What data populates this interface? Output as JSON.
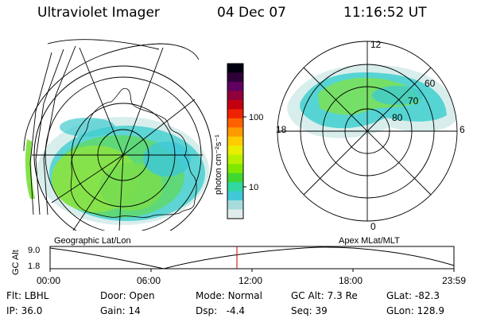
{
  "header": {
    "instrument": "Ultraviolet Imager",
    "date": "04 Dec 07",
    "time": "11:16:52 UT"
  },
  "colorbar": {
    "unit_label": "photon cm⁻²s⁻¹",
    "ticks": [
      "100",
      "10"
    ],
    "colors": [
      "#000010",
      "#300038",
      "#600060",
      "#90003a",
      "#c40010",
      "#ee2200",
      "#ff6000",
      "#ff9a00",
      "#ffcc00",
      "#e8ee00",
      "#b8f000",
      "#80e800",
      "#40d830",
      "#30d8a0",
      "#40c8d8",
      "#a8dcdc",
      "#e0ecec"
    ]
  },
  "geographic_map": {
    "label": "Geographic Lat/Lon"
  },
  "apex_map": {
    "label": "Apex MLat/MLT",
    "mlt_labels": {
      "top": "12",
      "left": "18",
      "right": "6",
      "bottom": "0"
    },
    "mlat_labels": [
      "60",
      "70",
      "80"
    ]
  },
  "altitude_strip": {
    "axis_label": "GC Alt",
    "y_ticks": [
      "9.0",
      "1.8"
    ],
    "x_ticks": [
      "00:00",
      "06:00",
      "12:00",
      "18:00",
      "23:59"
    ],
    "marker_color": "#cc0000"
  },
  "status": {
    "flt": {
      "label": "Flt:",
      "value": "LBHL"
    },
    "ip": {
      "label": "IP:",
      "value": "36.0"
    },
    "door": {
      "label": "Door:",
      "value": "Open"
    },
    "gain": {
      "label": "Gain:",
      "value": "14"
    },
    "mode": {
      "label": "Mode:",
      "value": "Normal"
    },
    "dsp": {
      "label": "Dsp:",
      "value": "-4.4"
    },
    "gcalt": {
      "label": "GC Alt:",
      "value": "7.3 Re"
    },
    "seq": {
      "label": "Seq:",
      "value": "39"
    },
    "glat": {
      "label": "GLat:",
      "value": "-82.3"
    },
    "glon": {
      "label": "GLon:",
      "value": "128.9"
    }
  }
}
